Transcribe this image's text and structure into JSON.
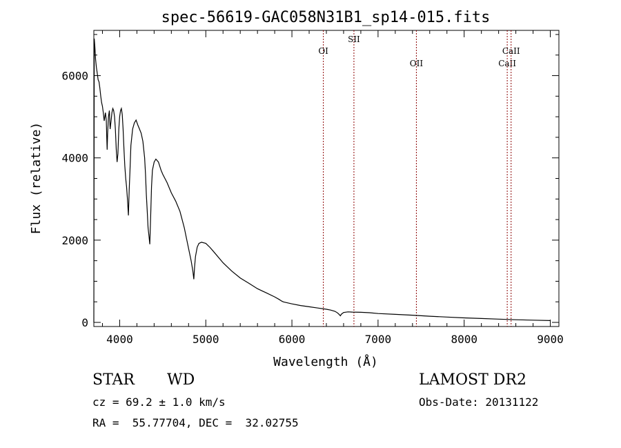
{
  "chart_data": {
    "type": "line",
    "title": "spec-56619-GAC058N31B1_sp14-015.fits",
    "xlabel": "Wavelength (Å)",
    "ylabel": "Flux (relative)",
    "xlim": [
      3700,
      9100
    ],
    "ylim": [
      -100,
      7100
    ],
    "xticks": [
      4000,
      5000,
      6000,
      7000,
      8000,
      9000
    ],
    "yticks": [
      0,
      2000,
      4000,
      6000
    ],
    "grid": false,
    "series": [
      {
        "x": [
          3700,
          3705,
          3712,
          3720,
          3730,
          3740,
          3750,
          3760,
          3770,
          3780,
          3790,
          3800,
          3810,
          3820,
          3835,
          3845,
          3850,
          3855,
          3860,
          3870,
          3880,
          3889,
          3900,
          3910,
          3920,
          3930,
          3940,
          3950,
          3960,
          3970,
          3980,
          3990,
          4000,
          4010,
          4020,
          4030,
          4040,
          4050,
          4060,
          4070,
          4080,
          4090,
          4101,
          4110,
          4120,
          4130,
          4150,
          4170,
          4190,
          4210,
          4230,
          4250,
          4270,
          4290,
          4300,
          4310,
          4320,
          4330,
          4340,
          4350,
          4360,
          4370,
          4380,
          4400,
          4420,
          4450,
          4480,
          4500,
          4550,
          4600,
          4650,
          4700,
          4750,
          4790,
          4810,
          4830,
          4850,
          4861,
          4870,
          4880,
          4900,
          4920,
          4950,
          5000,
          5050,
          5100,
          5200,
          5300,
          5400,
          5500,
          5600,
          5700,
          5800,
          5850,
          5880,
          5900,
          6000,
          6100,
          6200,
          6300,
          6400,
          6450,
          6500,
          6530,
          6550,
          6563,
          6575,
          6600,
          6650,
          6700,
          6800,
          6900,
          7000,
          7200,
          7400,
          7600,
          7800,
          8000,
          8200,
          8400,
          8600,
          8800,
          9000
        ],
        "y": [
          0,
          6900,
          6700,
          6400,
          6200,
          6050,
          5900,
          5850,
          5700,
          5500,
          5350,
          5250,
          5100,
          4900,
          5100,
          4900,
          4500,
          4200,
          4600,
          5000,
          5150,
          4700,
          4900,
          5100,
          5200,
          5150,
          5000,
          4700,
          4200,
          3900,
          4100,
          4700,
          5000,
          5150,
          5200,
          5050,
          4700,
          4200,
          3800,
          3500,
          3300,
          3000,
          2600,
          3200,
          3700,
          4300,
          4700,
          4850,
          4920,
          4800,
          4700,
          4600,
          4400,
          4000,
          3600,
          3100,
          2700,
          2300,
          2100,
          1900,
          2600,
          3300,
          3700,
          3900,
          3970,
          3900,
          3700,
          3600,
          3400,
          3150,
          2950,
          2700,
          2300,
          1900,
          1700,
          1500,
          1250,
          1050,
          1350,
          1600,
          1830,
          1920,
          1950,
          1920,
          1820,
          1700,
          1450,
          1250,
          1080,
          950,
          820,
          720,
          620,
          560,
          520,
          500,
          450,
          410,
          380,
          350,
          320,
          300,
          270,
          230,
          190,
          160,
          200,
          240,
          255,
          250,
          245,
          235,
          215,
          195,
          175,
          150,
          130,
          110,
          95,
          80,
          65,
          55,
          45
        ]
      }
    ],
    "annotations": [
      {
        "x": 6365,
        "label": "OI",
        "row": 2
      },
      {
        "x": 6720,
        "label": "SII",
        "row": 1
      },
      {
        "x": 7445,
        "label": "OII",
        "row": 3
      },
      {
        "x": 8500,
        "label": "CaII",
        "row": 3
      },
      {
        "x": 8545,
        "label": "CaII",
        "row": 2
      }
    ],
    "line_color": "#000000",
    "annotation_line_color": "#8b0000"
  },
  "info": {
    "star_label": "STAR",
    "star_type": "WD",
    "survey": "LAMOST DR2",
    "cz_line": "cz = 69.2 ± 1.0 km/s",
    "obs_date": "Obs-Date: 20131122",
    "coords": "RA =  55.77704, DEC =  32.02755"
  }
}
